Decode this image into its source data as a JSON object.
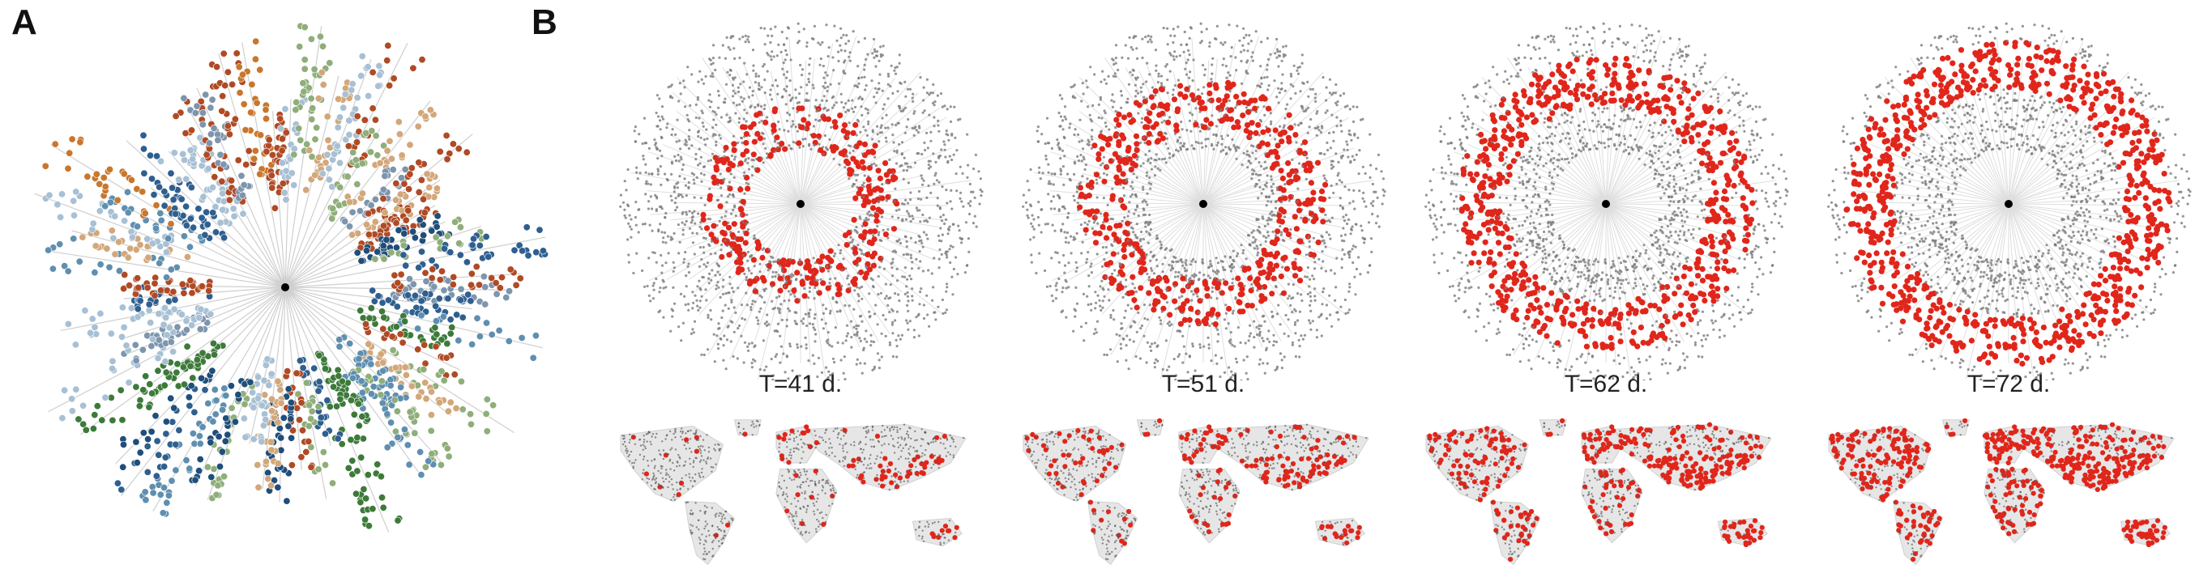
{
  "figure": {
    "panels": [
      {
        "id": "A",
        "letter": "A"
      },
      {
        "id": "B",
        "letter": "B"
      }
    ],
    "snapshots": [
      {
        "time_label": "T=41 d.",
        "infected_fraction": 0.12,
        "infected_radius": 0.42
      },
      {
        "time_label": "T=51 d.",
        "infected_fraction": 0.28,
        "infected_radius": 0.55
      },
      {
        "time_label": "T=62 d.",
        "infected_fraction": 0.55,
        "infected_radius": 0.68
      },
      {
        "time_label": "T=72 d.",
        "infected_fraction": 0.78,
        "infected_radius": 0.76
      }
    ],
    "colors": {
      "spoke": "#cfcfcf",
      "uninfected_node": "#7a7a7a",
      "infected_node": "#e0261b",
      "hub": "#000000",
      "map_land": "#c9c9c9",
      "map_city": "#555555",
      "community_palette": [
        "#2f5f8f",
        "#5f8fb0",
        "#c8772e",
        "#a8c0d4",
        "#b04a25",
        "#3d7a3a",
        "#d2a77a",
        "#8fae7a",
        "#1f4e7a",
        "#7d95ad"
      ]
    }
  }
}
